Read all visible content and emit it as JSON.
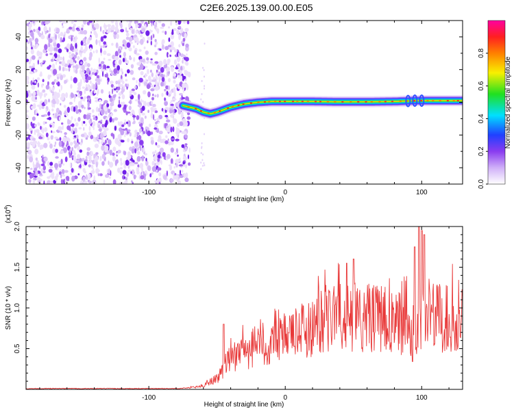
{
  "title": "C2E6.2025.139.00.00.E05",
  "chart_data": [
    {
      "type": "heatmap",
      "xlabel": "Height of straight line (km)",
      "ylabel": "Frequency (Hz)",
      "xlim": [
        -190,
        130
      ],
      "ylim": [
        -50,
        50
      ],
      "xticks": [
        -100,
        0,
        100
      ],
      "yticks": [
        -40,
        -20,
        0,
        20,
        40
      ],
      "noise_region_x": [
        -190,
        -70
      ],
      "trace": {
        "x": [
          -75,
          -65,
          -60,
          -55,
          -50,
          -40,
          -30,
          -20,
          -10,
          0,
          20,
          40,
          60,
          80,
          90,
          95,
          100,
          110,
          120,
          130
        ],
        "y": [
          -2,
          -4,
          -6,
          -7,
          -6,
          -3,
          -1,
          0,
          0.5,
          0.5,
          0.5,
          0.3,
          0.3,
          0.5,
          0.8,
          1.0,
          1.0,
          1.0,
          1.0,
          1.0
        ]
      },
      "colorbar": {
        "label": "Normalized spectral amplitude",
        "range": [
          0,
          1
        ],
        "ticks": [
          0.0,
          0.2,
          0.4,
          0.6,
          0.8
        ]
      },
      "grid": false
    },
    {
      "type": "line",
      "xlabel": "Height of straight line (km)",
      "ylabel": "SNR (10 * v/v)",
      "y_multiplier": "(x10",
      "y_multiplier_exp": "4",
      "y_multiplier_close": ")",
      "xlim": [
        -190,
        130
      ],
      "ylim": [
        0,
        2.0
      ],
      "xticks": [
        -100,
        0,
        100
      ],
      "yticks": [
        0.5,
        1.0,
        1.5,
        2.0
      ],
      "ytick_labels": [
        "0.5",
        "1.0",
        "1.5",
        "2.0"
      ],
      "series": [
        {
          "color": "#e83838",
          "envelope_x": [
            -190,
            -80,
            -70,
            -60,
            -50,
            -45,
            -40,
            -30,
            -20,
            -10,
            0,
            10,
            20,
            30,
            40,
            50,
            60,
            70,
            80,
            90,
            95,
            100,
            105,
            110,
            120,
            130
          ],
          "envelope_y": [
            0.01,
            0.01,
            0.02,
            0.05,
            0.15,
            0.3,
            0.45,
            0.5,
            0.58,
            0.65,
            0.7,
            0.8,
            0.88,
            0.95,
            1.0,
            1.0,
            1.0,
            0.98,
            0.95,
            0.9,
            0.6,
            0.95,
            1.0,
            1.0,
            1.0,
            1.0
          ],
          "peaks_x": [
            -45,
            45,
            50,
            95,
            98,
            100,
            102
          ],
          "peaks_y": [
            0.8,
            1.55,
            1.6,
            1.75,
            2.0,
            1.95,
            1.9
          ]
        }
      ],
      "grid": false
    }
  ]
}
